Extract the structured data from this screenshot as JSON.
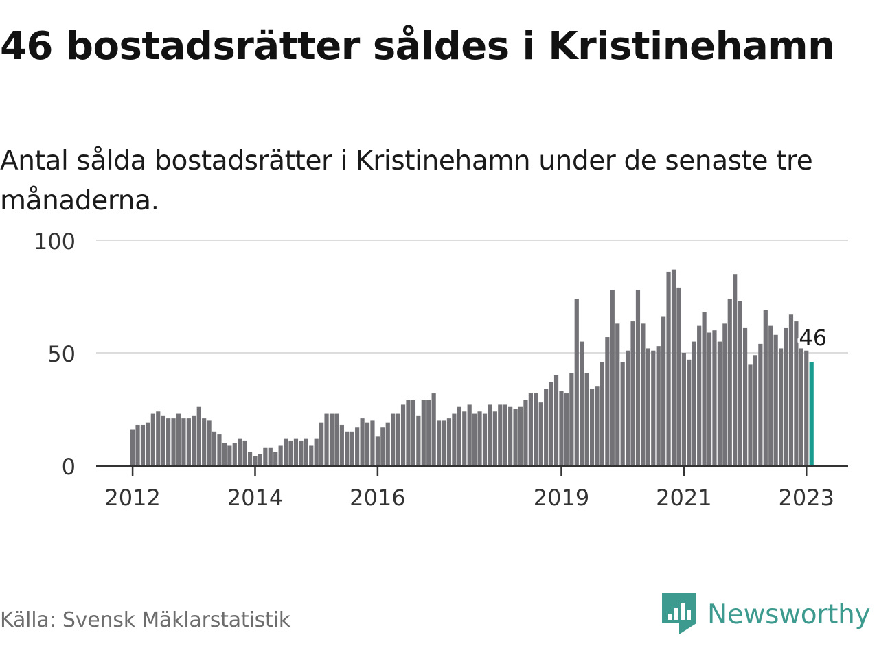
{
  "title": "46 bostadsrätter såldes i Kristinehamn",
  "subtitle": "Antal sålda bostadsrätter i Kristinehamn under de senaste tre månaderna.",
  "source": "Källa: Svensk Mäklarstatistik",
  "brand": {
    "name": "Newsworthy",
    "icon": "newsworthy-logo-icon",
    "color": "#3c9a8e"
  },
  "colors": {
    "bar": "#737277",
    "highlight": "#1a9b8f",
    "grid": "#dcdcdc",
    "axis": "#333333"
  },
  "chart_data": {
    "type": "bar",
    "title": "46 bostadsrätter såldes i Kristinehamn",
    "subtitle": "Antal sålda bostadsrätter i Kristinehamn under de senaste tre månaderna.",
    "xlabel": "",
    "ylabel": "",
    "ylim": [
      0,
      100
    ],
    "yticks": [
      0,
      50,
      100
    ],
    "grid": true,
    "x_start": "2012-01",
    "xticks": [
      "2012",
      "2014",
      "2016",
      "2019",
      "2021",
      "2023"
    ],
    "highlight_label": "46",
    "values": [
      16,
      18,
      18,
      19,
      23,
      24,
      22,
      21,
      21,
      23,
      21,
      21,
      22,
      26,
      21,
      20,
      15,
      14,
      10,
      9,
      10,
      12,
      11,
      6,
      4,
      5,
      8,
      8,
      6,
      9,
      12,
      11,
      12,
      11,
      12,
      9,
      12,
      19,
      23,
      23,
      23,
      18,
      15,
      15,
      17,
      21,
      19,
      20,
      13,
      17,
      19,
      23,
      23,
      27,
      29,
      29,
      22,
      29,
      29,
      32,
      20,
      20,
      21,
      23,
      26,
      24,
      27,
      23,
      24,
      23,
      27,
      24,
      27,
      27,
      26,
      25,
      26,
      29,
      32,
      32,
      28,
      34,
      37,
      40,
      33,
      32,
      41,
      74,
      55,
      41,
      34,
      35,
      46,
      57,
      78,
      63,
      46,
      51,
      64,
      78,
      63,
      52,
      51,
      53,
      66,
      86,
      87,
      79,
      50,
      47,
      55,
      62,
      68,
      59,
      60,
      55,
      63,
      74,
      85,
      73,
      61,
      45,
      49,
      54,
      69,
      62,
      58,
      52,
      61,
      67,
      64,
      52,
      51,
      46
    ]
  }
}
